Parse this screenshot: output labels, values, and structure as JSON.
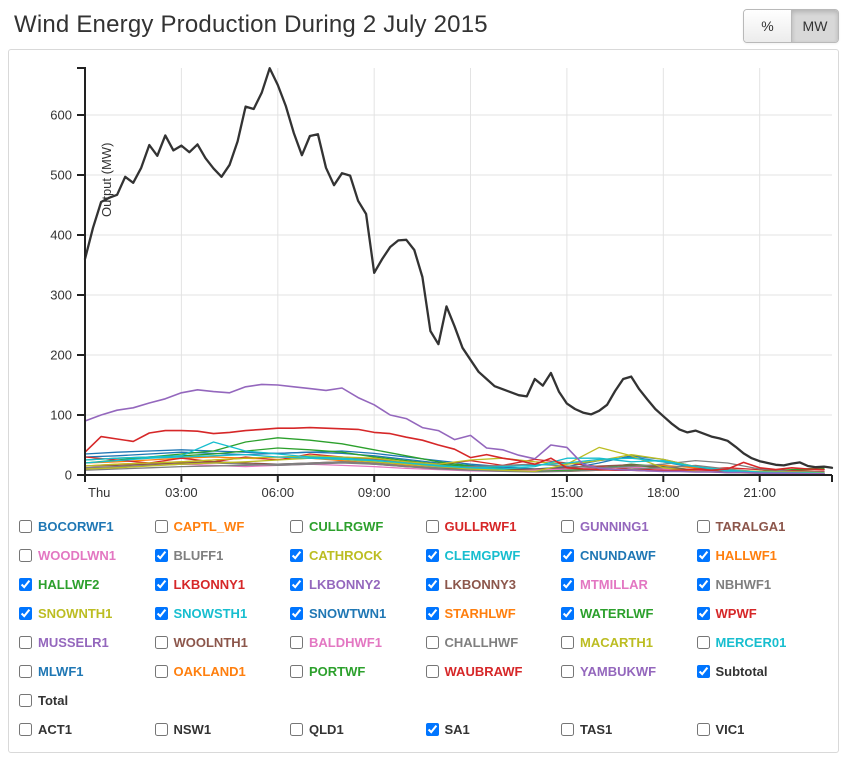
{
  "header": {
    "title": "Wind Energy Production During 2 July 2015",
    "units": [
      {
        "label": "%",
        "active": false
      },
      {
        "label": "MW",
        "active": true
      }
    ]
  },
  "chart_data": {
    "type": "line",
    "title": "Wind Energy Production During 2 July 2015",
    "xlabel": "",
    "ylabel": "Output (MW)",
    "ylim": [
      0,
      678
    ],
    "yticks": [
      0,
      100,
      200,
      300,
      400,
      500,
      600
    ],
    "x_max_hours": 23.25,
    "xticks": [
      {
        "h": 0,
        "label": "Thu"
      },
      {
        "h": 3,
        "label": "03:00"
      },
      {
        "h": 6,
        "label": "06:00"
      },
      {
        "h": 9,
        "label": "09:00"
      },
      {
        "h": 12,
        "label": "12:00"
      },
      {
        "h": 15,
        "label": "15:00"
      },
      {
        "h": 18,
        "label": "18:00"
      },
      {
        "h": 21,
        "label": "21:00"
      }
    ],
    "grid": true,
    "legend_position": "below-as-checkboxes",
    "series": [
      {
        "name": "CNUNDAWF",
        "color": "#1f77b4",
        "x_step": 1,
        "values": [
          35,
          38,
          40,
          42,
          40,
          38,
          36,
          38,
          40,
          36,
          30,
          24,
          18,
          14,
          10,
          10,
          20,
          32,
          26,
          14,
          8,
          5,
          3,
          3
        ]
      },
      {
        "name": "SNOWTWN1",
        "color": "#1f77b4",
        "x_step": 1,
        "values": [
          30,
          32,
          35,
          38,
          36,
          34,
          36,
          38,
          36,
          32,
          26,
          20,
          16,
          12,
          10,
          14,
          24,
          30,
          22,
          12,
          6,
          4,
          3,
          2
        ]
      },
      {
        "name": "HALLWF1",
        "color": "#ff7f0e",
        "x_step": 1,
        "values": [
          20,
          22,
          25,
          28,
          30,
          28,
          26,
          28,
          30,
          26,
          20,
          16,
          12,
          10,
          8,
          8,
          10,
          14,
          16,
          12,
          8,
          5,
          3,
          2
        ]
      },
      {
        "name": "STARHLWF",
        "color": "#ff7f0e",
        "x_step": 1,
        "values": [
          15,
          18,
          20,
          22,
          25,
          28,
          30,
          28,
          24,
          20,
          16,
          12,
          10,
          8,
          6,
          6,
          8,
          10,
          12,
          9,
          6,
          4,
          3,
          2
        ]
      },
      {
        "name": "HALLWF2",
        "color": "#2ca02c",
        "x_step": 1,
        "values": [
          25,
          28,
          30,
          32,
          35,
          40,
          45,
          42,
          38,
          30,
          24,
          18,
          14,
          10,
          8,
          8,
          12,
          18,
          14,
          8,
          5,
          6,
          9,
          12
        ]
      },
      {
        "name": "WATERLWF",
        "color": "#2ca02c",
        "x_step": 1,
        "values": [
          20,
          25,
          30,
          35,
          40,
          55,
          62,
          58,
          52,
          42,
          32,
          22,
          15,
          10,
          7,
          6,
          10,
          16,
          12,
          7,
          4,
          5,
          8,
          10
        ]
      },
      {
        "name": "WPWF",
        "color": "#d62728",
        "x_step": 1,
        "values": [
          30,
          25,
          20,
          28,
          22,
          30,
          25,
          35,
          30,
          26,
          22,
          18,
          24,
          16,
          26,
          20,
          14,
          10,
          8,
          10,
          12,
          9,
          7,
          6
        ]
      },
      {
        "name": "LKBONNY3",
        "color": "#8c564b",
        "x_step": 1,
        "values": [
          15,
          16,
          18,
          20,
          22,
          20,
          18,
          20,
          22,
          18,
          14,
          11,
          9,
          8,
          10,
          12,
          15,
          17,
          13,
          8,
          5,
          4,
          3,
          2
        ]
      },
      {
        "name": "MTMILLAR",
        "color": "#e377c2",
        "x_step": 1,
        "values": [
          12,
          14,
          16,
          18,
          16,
          14,
          16,
          18,
          16,
          14,
          11,
          9,
          7,
          6,
          8,
          10,
          12,
          13,
          10,
          7,
          4,
          3,
          2,
          2
        ]
      },
      {
        "name": "NBHWF1",
        "color": "#7f7f7f",
        "x_step": 1,
        "values": [
          12,
          14,
          16,
          18,
          20,
          18,
          16,
          18,
          20,
          18,
          14,
          10,
          8,
          6,
          5,
          6,
          8,
          10,
          12,
          16,
          10,
          5,
          3,
          3
        ]
      },
      {
        "name": "BLUFF1",
        "color": "#7f7f7f",
        "x_step": 1,
        "values": [
          8,
          10,
          12,
          14,
          15,
          16,
          18,
          20,
          22,
          20,
          15,
          12,
          14,
          16,
          18,
          15,
          12,
          14,
          18,
          24,
          20,
          10,
          6,
          5
        ]
      },
      {
        "name": "SNOWNTH1",
        "color": "#bcbd22",
        "x_step": 1,
        "values": [
          10,
          12,
          15,
          18,
          20,
          22,
          25,
          28,
          26,
          22,
          18,
          14,
          10,
          8,
          6,
          18,
          46,
          32,
          12,
          6,
          4,
          3,
          3,
          2
        ]
      },
      {
        "name": "CATHROCK",
        "color": "#bcbd22",
        "x_step": 1,
        "values": [
          15,
          18,
          20,
          22,
          25,
          28,
          30,
          32,
          30,
          28,
          22,
          18,
          25,
          28,
          22,
          18,
          24,
          34,
          26,
          14,
          8,
          6,
          5,
          4
        ]
      },
      {
        "name": "CLEMGPWF",
        "color": "#17becf",
        "x_step": 1,
        "values": [
          20,
          24,
          28,
          30,
          32,
          34,
          30,
          28,
          26,
          24,
          20,
          15,
          12,
          14,
          16,
          20,
          26,
          28,
          22,
          14,
          8,
          5,
          4,
          3
        ]
      },
      {
        "name": "SNOWSTH1",
        "color": "#17becf",
        "x_step": 1,
        "values": [
          25,
          28,
          30,
          32,
          55,
          40,
          35,
          30,
          28,
          25,
          20,
          16,
          12,
          10,
          14,
          28,
          28,
          22,
          24,
          14,
          6,
          4,
          3,
          3
        ]
      },
      {
        "name": "LKBONNY1",
        "color": "#d62728",
        "x_step": 0.5,
        "values": [
          38,
          64,
          60,
          56,
          70,
          74,
          74,
          73,
          69,
          71,
          74,
          76,
          78,
          78,
          79,
          78,
          77,
          76,
          71,
          69,
          63,
          58,
          50,
          43,
          29,
          34,
          28,
          24,
          18,
          28,
          12,
          10,
          9,
          8,
          8,
          7,
          7,
          8,
          9,
          8,
          10,
          21,
          12,
          9,
          12,
          10,
          9
        ]
      },
      {
        "name": "LKBONNY2",
        "color": "#9467bd",
        "x_step": 0.5,
        "values": [
          90,
          100,
          108,
          112,
          120,
          127,
          137,
          142,
          139,
          137,
          147,
          151,
          150,
          147,
          144,
          141,
          145,
          129,
          117,
          100,
          94,
          79,
          74,
          59,
          66,
          45,
          42,
          33,
          27,
          50,
          46,
          18,
          11,
          9,
          8,
          7,
          6,
          6,
          5,
          5,
          4,
          4,
          3,
          3,
          3,
          2,
          2
        ]
      },
      {
        "name": "Subtotal",
        "color": "#333333",
        "x_step": 0.25,
        "values": [
          360,
          412,
          455,
          462,
          467,
          497,
          487,
          512,
          550,
          532,
          566,
          541,
          549,
          538,
          551,
          528,
          511,
          497,
          517,
          556,
          614,
          610,
          637,
          678,
          650,
          615,
          570,
          533,
          565,
          568,
          512,
          483,
          503,
          499,
          457,
          435,
          337,
          360,
          380,
          391,
          392,
          375,
          330,
          240,
          218,
          281,
          248,
          212,
          192,
          172,
          160,
          148,
          143,
          138,
          133,
          131,
          160,
          149,
          170,
          139,
          119,
          110,
          104,
          101,
          107,
          117,
          140,
          160,
          164,
          143,
          126,
          110,
          98,
          86,
          76,
          71,
          74,
          69,
          64,
          61,
          57,
          47,
          36,
          28,
          23,
          20,
          17,
          16,
          19,
          21,
          15,
          13,
          14,
          12
        ]
      }
    ]
  },
  "legend": {
    "items": [
      {
        "label": "BOCORWF1",
        "color": "#1f77b4",
        "checked": false
      },
      {
        "label": "CAPTL_WF",
        "color": "#ff7f0e",
        "checked": false
      },
      {
        "label": "CULLRGWF",
        "color": "#2ca02c",
        "checked": false
      },
      {
        "label": "GULLRWF1",
        "color": "#d62728",
        "checked": false
      },
      {
        "label": "GUNNING1",
        "color": "#9467bd",
        "checked": false
      },
      {
        "label": "TARALGA1",
        "color": "#8c564b",
        "checked": false
      },
      {
        "label": "WOODLWN1",
        "color": "#e377c2",
        "checked": false
      },
      {
        "label": "BLUFF1",
        "color": "#7f7f7f",
        "checked": true
      },
      {
        "label": "CATHROCK",
        "color": "#bcbd22",
        "checked": true
      },
      {
        "label": "CLEMGPWF",
        "color": "#17becf",
        "checked": true
      },
      {
        "label": "CNUNDAWF",
        "color": "#1f77b4",
        "checked": true
      },
      {
        "label": "HALLWF1",
        "color": "#ff7f0e",
        "checked": true
      },
      {
        "label": "HALLWF2",
        "color": "#2ca02c",
        "checked": true
      },
      {
        "label": "LKBONNY1",
        "color": "#d62728",
        "checked": true
      },
      {
        "label": "LKBONNY2",
        "color": "#9467bd",
        "checked": true
      },
      {
        "label": "LKBONNY3",
        "color": "#8c564b",
        "checked": true
      },
      {
        "label": "MTMILLAR",
        "color": "#e377c2",
        "checked": true
      },
      {
        "label": "NBHWF1",
        "color": "#7f7f7f",
        "checked": true
      },
      {
        "label": "SNOWNTH1",
        "color": "#bcbd22",
        "checked": true
      },
      {
        "label": "SNOWSTH1",
        "color": "#17becf",
        "checked": true
      },
      {
        "label": "SNOWTWN1",
        "color": "#1f77b4",
        "checked": true
      },
      {
        "label": "STARHLWF",
        "color": "#ff7f0e",
        "checked": true
      },
      {
        "label": "WATERLWF",
        "color": "#2ca02c",
        "checked": true
      },
      {
        "label": "WPWF",
        "color": "#d62728",
        "checked": true
      },
      {
        "label": "MUSSELR1",
        "color": "#9467bd",
        "checked": false
      },
      {
        "label": "WOOLNTH1",
        "color": "#8c564b",
        "checked": false
      },
      {
        "label": "BALDHWF1",
        "color": "#e377c2",
        "checked": false
      },
      {
        "label": "CHALLHWF",
        "color": "#7f7f7f",
        "checked": false
      },
      {
        "label": "MACARTH1",
        "color": "#bcbd22",
        "checked": false
      },
      {
        "label": "MERCER01",
        "color": "#17becf",
        "checked": false
      },
      {
        "label": "MLWF1",
        "color": "#1f77b4",
        "checked": false
      },
      {
        "label": "OAKLAND1",
        "color": "#ff7f0e",
        "checked": false
      },
      {
        "label": "PORTWF",
        "color": "#2ca02c",
        "checked": false
      },
      {
        "label": "WAUBRAWF",
        "color": "#d62728",
        "checked": false
      },
      {
        "label": "YAMBUKWF",
        "color": "#9467bd",
        "checked": false
      },
      {
        "label": "Subtotal",
        "color": "#333333",
        "checked": true
      },
      {
        "label": "Total",
        "color": "#333333",
        "checked": false
      }
    ]
  },
  "regions": {
    "items": [
      {
        "label": "ACT1",
        "checked": false
      },
      {
        "label": "NSW1",
        "checked": false
      },
      {
        "label": "QLD1",
        "checked": false
      },
      {
        "label": "SA1",
        "checked": true
      },
      {
        "label": "TAS1",
        "checked": false
      },
      {
        "label": "VIC1",
        "checked": false
      }
    ]
  },
  "style_colors": {
    "axis": "#222222",
    "grid": "#e3e3e3",
    "tick_text": "#333333",
    "panel_border": "#d9d9d9"
  }
}
